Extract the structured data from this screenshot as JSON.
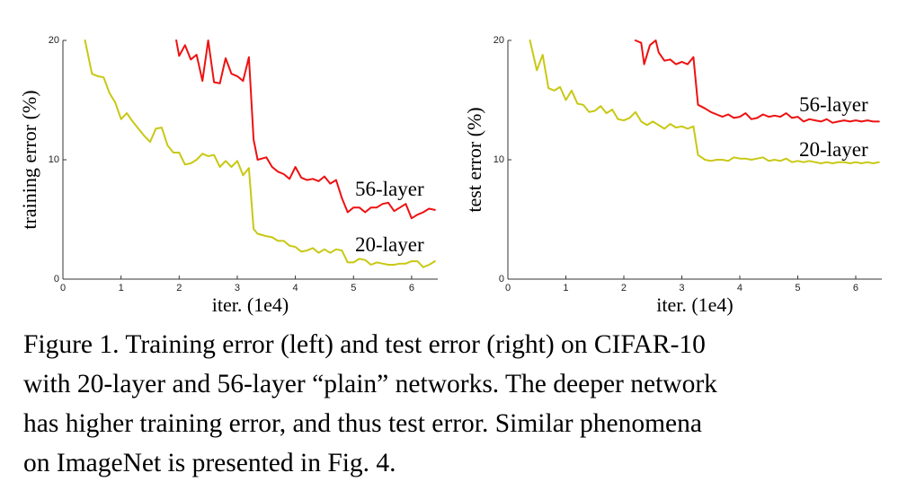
{
  "chart_data": [
    {
      "type": "line",
      "xlabel": "iter. (1e4)",
      "ylabel": "training error (%)",
      "xlim": [
        0,
        6.45
      ],
      "ylim": [
        0,
        20
      ],
      "xticks": [
        "0",
        "1",
        "2",
        "3",
        "4",
        "5",
        "6"
      ],
      "yticks": [
        "0",
        "10",
        "20"
      ],
      "grid": false,
      "legend": "inline labels at series ends",
      "series": [
        {
          "name": "56-layer",
          "color": "#ee1111",
          "x": [
            1.95,
            2.0,
            2.1,
            2.2,
            2.3,
            2.4,
            2.5,
            2.6,
            2.7,
            2.8,
            2.9,
            3.0,
            3.1,
            3.2,
            3.28,
            3.35,
            3.5,
            3.6,
            3.7,
            3.8,
            3.9,
            4.0,
            4.1,
            4.2,
            4.3,
            4.4,
            4.5,
            4.6,
            4.7,
            4.8,
            4.9,
            5.0,
            5.1,
            5.2,
            5.3,
            5.4,
            5.5,
            5.6,
            5.7,
            5.8,
            5.9,
            6.0,
            6.1,
            6.2,
            6.3,
            6.4
          ],
          "values": [
            20,
            18.7,
            19.6,
            18.4,
            18.8,
            16.6,
            20,
            16.5,
            16.4,
            18.5,
            17.2,
            17.0,
            16.6,
            18.6,
            11.7,
            10.0,
            10.2,
            9.4,
            9.0,
            8.8,
            8.4,
            9.4,
            8.5,
            8.3,
            8.4,
            8.2,
            8.6,
            8.0,
            8.3,
            6.8,
            5.6,
            6.0,
            6.0,
            5.6,
            6.0,
            6.0,
            6.3,
            6.4,
            5.7,
            6.0,
            6.3,
            5.1,
            5.4,
            5.6,
            5.9,
            5.8
          ]
        },
        {
          "name": "20-layer",
          "color": "#c8c814",
          "x": [
            0.38,
            0.5,
            0.6,
            0.7,
            0.8,
            0.9,
            1.0,
            1.1,
            1.2,
            1.3,
            1.4,
            1.5,
            1.6,
            1.7,
            1.8,
            1.9,
            2.0,
            2.1,
            2.2,
            2.3,
            2.4,
            2.5,
            2.6,
            2.7,
            2.8,
            2.9,
            3.0,
            3.1,
            3.2,
            3.28,
            3.35,
            3.5,
            3.6,
            3.7,
            3.8,
            3.9,
            4.0,
            4.1,
            4.2,
            4.3,
            4.4,
            4.5,
            4.6,
            4.7,
            4.8,
            4.9,
            5.0,
            5.1,
            5.2,
            5.3,
            5.4,
            5.5,
            5.6,
            5.7,
            5.8,
            5.9,
            6.0,
            6.1,
            6.2,
            6.3,
            6.4
          ],
          "values": [
            20,
            17.2,
            17.0,
            16.9,
            15.6,
            14.8,
            13.4,
            13.9,
            13.2,
            12.6,
            12.0,
            11.5,
            12.6,
            12.7,
            11.2,
            10.6,
            10.6,
            9.6,
            9.7,
            10.0,
            10.5,
            10.3,
            10.4,
            9.4,
            9.9,
            9.4,
            9.9,
            8.7,
            9.3,
            4.2,
            3.8,
            3.6,
            3.5,
            3.2,
            3.2,
            2.8,
            2.7,
            2.3,
            2.4,
            2.6,
            2.2,
            2.5,
            2.2,
            2.5,
            2.4,
            1.4,
            1.4,
            1.7,
            1.6,
            1.2,
            1.4,
            1.3,
            1.2,
            1.2,
            1.3,
            1.3,
            1.5,
            1.5,
            1.0,
            1.2,
            1.5
          ]
        }
      ]
    },
    {
      "type": "line",
      "xlabel": "iter. (1e4)",
      "ylabel": "test error (%)",
      "xlim": [
        0,
        6.45
      ],
      "ylim": [
        0,
        20
      ],
      "xticks": [
        "0",
        "1",
        "2",
        "3",
        "4",
        "5",
        "6"
      ],
      "yticks": [
        "0",
        "10",
        "20"
      ],
      "grid": false,
      "legend": "inline labels at series ends",
      "series": [
        {
          "name": "56-layer",
          "color": "#ee1111",
          "x": [
            2.2,
            2.3,
            2.35,
            2.45,
            2.55,
            2.6,
            2.7,
            2.8,
            2.9,
            3.0,
            3.1,
            3.2,
            3.28,
            3.4,
            3.5,
            3.6,
            3.7,
            3.8,
            3.9,
            4.0,
            4.1,
            4.2,
            4.3,
            4.4,
            4.5,
            4.6,
            4.7,
            4.8,
            4.9,
            5.0,
            5.1,
            5.2,
            5.3,
            5.4,
            5.5,
            5.6,
            5.7,
            5.8,
            5.9,
            6.0,
            6.1,
            6.2,
            6.3,
            6.4
          ],
          "values": [
            20,
            19.8,
            18.0,
            19.6,
            20,
            19.0,
            18.3,
            18.4,
            18.0,
            18.2,
            18.0,
            18.6,
            14.6,
            14.3,
            14.0,
            13.8,
            13.6,
            13.8,
            13.5,
            13.6,
            13.9,
            13.4,
            13.5,
            13.8,
            13.6,
            13.7,
            13.6,
            13.9,
            13.5,
            13.6,
            13.2,
            13.4,
            13.3,
            13.2,
            13.4,
            13.1,
            13.2,
            13.3,
            13.2,
            13.3,
            13.2,
            13.3,
            13.2,
            13.2
          ]
        },
        {
          "name": "20-layer",
          "color": "#c8c814",
          "x": [
            0.38,
            0.5,
            0.6,
            0.7,
            0.8,
            0.9,
            1.0,
            1.1,
            1.2,
            1.3,
            1.4,
            1.5,
            1.6,
            1.7,
            1.8,
            1.9,
            2.0,
            2.1,
            2.2,
            2.3,
            2.4,
            2.5,
            2.6,
            2.7,
            2.8,
            2.9,
            3.0,
            3.1,
            3.2,
            3.28,
            3.4,
            3.5,
            3.6,
            3.7,
            3.8,
            3.9,
            4.0,
            4.1,
            4.2,
            4.3,
            4.4,
            4.5,
            4.6,
            4.7,
            4.8,
            4.9,
            5.0,
            5.1,
            5.2,
            5.3,
            5.4,
            5.5,
            5.6,
            5.7,
            5.8,
            5.9,
            6.0,
            6.1,
            6.2,
            6.3,
            6.4
          ],
          "values": [
            20,
            17.5,
            18.8,
            16.0,
            15.8,
            16.1,
            15.0,
            15.8,
            14.7,
            14.6,
            14.0,
            14.1,
            14.5,
            13.9,
            14.2,
            13.4,
            13.3,
            13.5,
            14.0,
            13.2,
            12.9,
            13.2,
            12.9,
            12.6,
            13.0,
            12.7,
            12.8,
            12.6,
            12.8,
            10.4,
            10.0,
            9.9,
            10.0,
            10.0,
            9.9,
            10.2,
            10.1,
            10.1,
            10.0,
            10.1,
            10.2,
            9.9,
            10.0,
            9.9,
            10.1,
            9.8,
            9.9,
            9.8,
            9.9,
            9.8,
            9.7,
            9.8,
            9.7,
            9.8,
            9.8,
            9.7,
            9.8,
            9.7,
            9.8,
            9.7,
            9.8
          ]
        }
      ]
    }
  ],
  "caption": {
    "lines": [
      "Figure 1. Training error (left) and test error (right) on CIFAR-10",
      "with 20-layer and 56-layer “plain” networks. The deeper network",
      "has higher training error, and thus test error.  Similar phenomena",
      "on ImageNet is presented in Fig. 4."
    ]
  }
}
